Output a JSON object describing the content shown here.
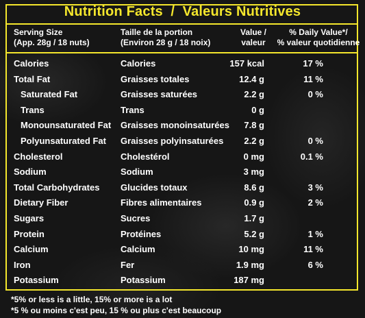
{
  "title": "Nutrition Facts  /  Valeurs Nutritives",
  "header": {
    "serving_en_1": "Serving Size",
    "serving_en_2": "(App. 28g / 18 nuts)",
    "serving_fr_1": "Taille de la portion",
    "serving_fr_2": "(Environ 28 g / 18 noix)",
    "value_1": "Value /",
    "value_2": "valeur",
    "dv_1": "% Daily Value*/",
    "dv_2": "% valeur quotidienne"
  },
  "rows": [
    {
      "en": "Calories",
      "fr": "Calories",
      "value": "157 kcal",
      "dv": "17 %",
      "indent": false
    },
    {
      "en": "Total Fat",
      "fr": "Graisses totales",
      "value": "12.4 g",
      "dv": "11 %",
      "indent": false
    },
    {
      "en": "Saturated Fat",
      "fr": "Graisses saturées",
      "value": "2.2 g",
      "dv": "0 %",
      "indent": true
    },
    {
      "en": "Trans",
      "fr": "Trans",
      "value": "0 g",
      "dv": "",
      "indent": true
    },
    {
      "en": "Monounsaturated Fat",
      "fr": "Graisses monoinsaturées",
      "value": "7.8 g",
      "dv": "",
      "indent": true
    },
    {
      "en": "Polyunsaturated Fat",
      "fr": "Graisses polyinsaturées",
      "value": "2.2 g",
      "dv": "0 %",
      "indent": true
    },
    {
      "en": "Cholesterol",
      "fr": "Cholestérol",
      "value": "0 mg",
      "dv": "0.1 %",
      "indent": false
    },
    {
      "en": "Sodium",
      "fr": "Sodium",
      "value": "3 mg",
      "dv": "",
      "indent": false
    },
    {
      "en": "Total Carbohydrates",
      "fr": "Glucides totaux",
      "value": "8.6 g",
      "dv": "3 %",
      "indent": false
    },
    {
      "en": "Dietary Fiber",
      "fr": "Fibres alimentaires",
      "value": "0.9 g",
      "dv": "2 %",
      "indent": false
    },
    {
      "en": "Sugars",
      "fr": "Sucres",
      "value": "1.7 g",
      "dv": "",
      "indent": false
    },
    {
      "en": "Protein",
      "fr": "Protéines",
      "value": "5.2 g",
      "dv": "1 %",
      "indent": false
    },
    {
      "en": "Calcium",
      "fr": "Calcium",
      "value": "10 mg",
      "dv": "11 %",
      "indent": false
    },
    {
      "en": "Iron",
      "fr": "Fer",
      "value": "1.9 mg",
      "dv": "6 %",
      "indent": false
    },
    {
      "en": "Potassium",
      "fr": "Potassium",
      "value": "187 mg",
      "dv": "",
      "indent": false
    }
  ],
  "footnotes": {
    "en": "*5% or less is a little, 15% or more is a lot",
    "fr": "*5 % ou moins c'est peu, 15 % ou plus c'est beaucoup"
  },
  "colors": {
    "accent": "#f5e72c",
    "background": "#161616",
    "text": "#ffffff"
  }
}
